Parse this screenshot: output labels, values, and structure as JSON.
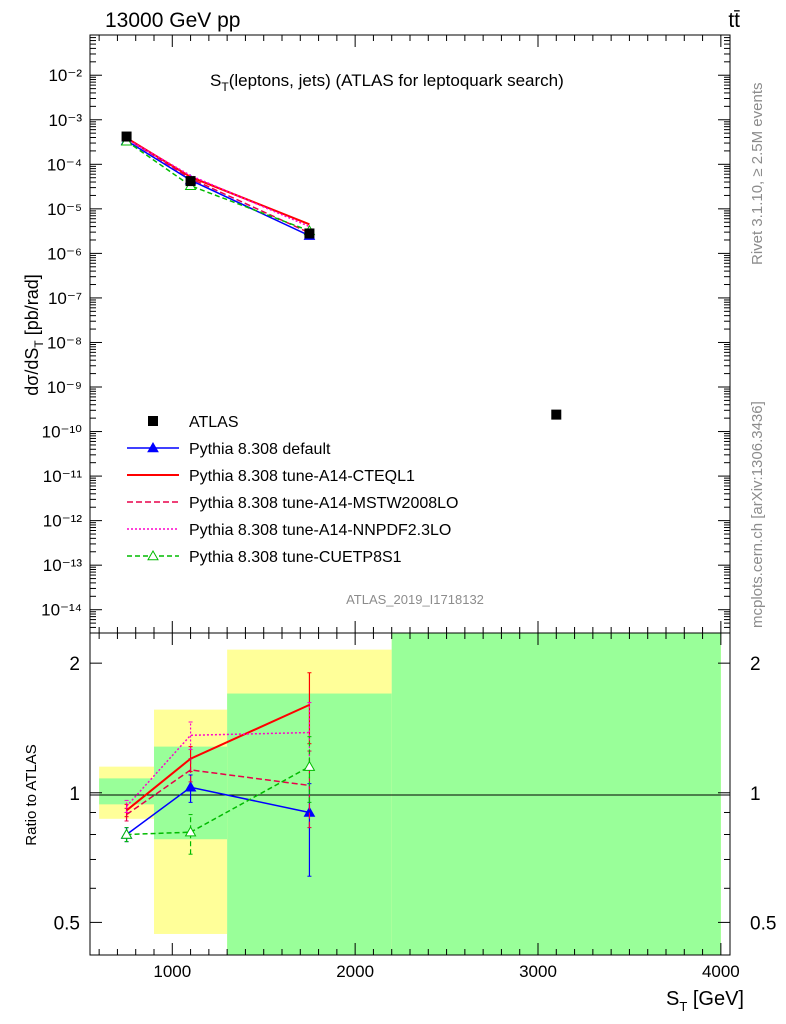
{
  "header": {
    "energy_label": "13000 GeV pp",
    "process_label": "tt̄"
  },
  "side": {
    "rivet_label": "Rivet 3.1.10, ≥ 2.5M events",
    "mcplots_label": "mcplots.cern.ch [arXiv:1306.3436]"
  },
  "chart_data": [
    {
      "type": "line",
      "title": "S_T(leptons, jets) (ATLAS for leptoquark search)",
      "ylabel": "dσ/dS_T [pb/rad]",
      "yscale": "log",
      "ylim": [
        3e-15,
        0.08
      ],
      "xlim": [
        550,
        4050
      ],
      "yticks": [
        {
          "v": 1e-14,
          "label": "10⁻¹⁴"
        },
        {
          "v": 1e-13,
          "label": "10⁻¹³"
        },
        {
          "v": 1e-12,
          "label": "10⁻¹²"
        },
        {
          "v": 1e-11,
          "label": "10⁻¹¹"
        },
        {
          "v": 1e-10,
          "label": "10⁻¹⁰"
        },
        {
          "v": 1e-09,
          "label": "10⁻⁹"
        },
        {
          "v": 1e-08,
          "label": "10⁻⁸"
        },
        {
          "v": 1e-07,
          "label": "10⁻⁷"
        },
        {
          "v": 1e-06,
          "label": "10⁻⁶"
        },
        {
          "v": 1e-05,
          "label": "10⁻⁵"
        },
        {
          "v": 0.0001,
          "label": "10⁻⁴"
        },
        {
          "v": 0.001,
          "label": "10⁻³"
        },
        {
          "v": 0.01,
          "label": "10⁻²"
        }
      ],
      "analysis_label": "ATLAS_2019_I1718132",
      "legend_position": "bottom-left",
      "data": {
        "name": "ATLAS",
        "color": "#000000",
        "x": [
          750,
          1100,
          1750,
          3100
        ],
        "y": [
          0.00042,
          4.2e-05,
          2.8e-06,
          2.4e-10
        ]
      },
      "series": [
        {
          "name": "Pythia 8.308 default",
          "color": "#0000ff",
          "dash": "",
          "marker": "triangle-filled",
          "x": [
            750,
            1100,
            1750
          ],
          "y": [
            0.00034,
            4.4e-05,
            2.5e-06
          ]
        },
        {
          "name": "Pythia 8.308 tune-A14-CTEQL1",
          "color": "#ff0000",
          "dash": "",
          "marker": "none",
          "x": [
            750,
            1100,
            1750
          ],
          "y": [
            0.00039,
            5.2e-05,
            4.5e-06
          ]
        },
        {
          "name": "Pythia 8.308 tune-A14-MSTW2008LO",
          "color": "#e8004a",
          "dash": "6,3",
          "marker": "none",
          "x": [
            750,
            1100,
            1750
          ],
          "y": [
            0.00038,
            4.8e-05,
            2.9e-06
          ]
        },
        {
          "name": "Pythia 8.308 tune-A14-NNPDF2.3LO",
          "color": "#ff00cc",
          "dash": "2,2",
          "marker": "none",
          "x": [
            750,
            1100,
            1750
          ],
          "y": [
            0.00037,
            5.6e-05,
            4e-06
          ]
        },
        {
          "name": "Pythia 8.308 tune-CUETP8S1",
          "color": "#00bb00",
          "dash": "5,3",
          "marker": "triangle-open",
          "x": [
            750,
            1100,
            1750
          ],
          "y": [
            0.00033,
            3.3e-05,
            3.2e-06
          ]
        }
      ]
    },
    {
      "type": "line",
      "ylabel": "Ratio to ATLAS",
      "xlabel": "S_T [GeV]",
      "yscale": "log",
      "ylim": [
        0.42,
        2.35
      ],
      "xlim": [
        550,
        4050
      ],
      "yticks": [
        {
          "v": 0.5,
          "label": "0.5"
        },
        {
          "v": 1,
          "label": "1"
        },
        {
          "v": 2,
          "label": "2"
        }
      ],
      "xticks": [
        {
          "v": 1000,
          "label": "1000"
        },
        {
          "v": 2000,
          "label": "2000"
        },
        {
          "v": 3000,
          "label": "3000"
        },
        {
          "v": 4000,
          "label": "4000"
        }
      ],
      "uncertainty_bands": [
        {
          "x0": 600,
          "x1": 900,
          "stat_lo": 0.94,
          "stat_hi": 1.08,
          "tot_lo": 0.87,
          "tot_hi": 1.15
        },
        {
          "x0": 900,
          "x1": 1300,
          "stat_lo": 0.78,
          "stat_hi": 1.28,
          "tot_lo": 0.47,
          "tot_hi": 1.56
        },
        {
          "x0": 1300,
          "x1": 2200,
          "stat_lo": 0.42,
          "stat_hi": 1.7,
          "tot_lo": 0.42,
          "tot_hi": 2.15
        },
        {
          "x0": 2200,
          "x1": 4000,
          "stat_lo": 0.42,
          "stat_hi": 2.35,
          "tot_lo": 0.42,
          "tot_hi": 2.35
        }
      ],
      "band_colors": {
        "total": "#ffff99",
        "stat": "#99ff99"
      },
      "series": [
        {
          "name": "Pythia 8.308 default",
          "color": "#0000ff",
          "dash": "",
          "marker": "triangle-filled",
          "x": [
            750,
            1100,
            1750
          ],
          "y": [
            0.8,
            1.03,
            0.9
          ],
          "err_lo": [
            0.77,
            0.95,
            0.64
          ],
          "err_hi": [
            0.83,
            1.1,
            1.05
          ]
        },
        {
          "name": "Pythia 8.308 tune-A14-CTEQL1",
          "color": "#ff0000",
          "dash": "",
          "marker": "none",
          "x": [
            750,
            1100,
            1750
          ],
          "y": [
            0.91,
            1.2,
            1.6
          ],
          "err_lo": [
            0.88,
            1.12,
            1.3
          ],
          "err_hi": [
            0.94,
            1.28,
            1.9
          ]
        },
        {
          "name": "Pythia 8.308 tune-A14-MSTW2008LO",
          "color": "#e8004a",
          "dash": "6,3",
          "marker": "none",
          "x": [
            750,
            1100,
            1750
          ],
          "y": [
            0.89,
            1.13,
            1.04
          ],
          "err_lo": [
            0.86,
            1.06,
            0.83
          ],
          "err_hi": [
            0.92,
            1.2,
            1.25
          ]
        },
        {
          "name": "Pythia 8.308 tune-A14-NNPDF2.3LO",
          "color": "#ff00cc",
          "dash": "2,2",
          "marker": "none",
          "x": [
            750,
            1100,
            1750
          ],
          "y": [
            0.93,
            1.36,
            1.38
          ],
          "err_lo": [
            0.9,
            1.26,
            1.14
          ],
          "err_hi": [
            0.96,
            1.46,
            1.62
          ]
        },
        {
          "name": "Pythia 8.308 tune-CUETP8S1",
          "color": "#00bb00",
          "dash": "5,3",
          "marker": "triangle-open",
          "x": [
            750,
            1100,
            1750
          ],
          "y": [
            0.8,
            0.81,
            1.15
          ],
          "err_lo": [
            0.77,
            0.72,
            0.95
          ],
          "err_hi": [
            0.83,
            0.89,
            1.35
          ]
        }
      ]
    }
  ]
}
